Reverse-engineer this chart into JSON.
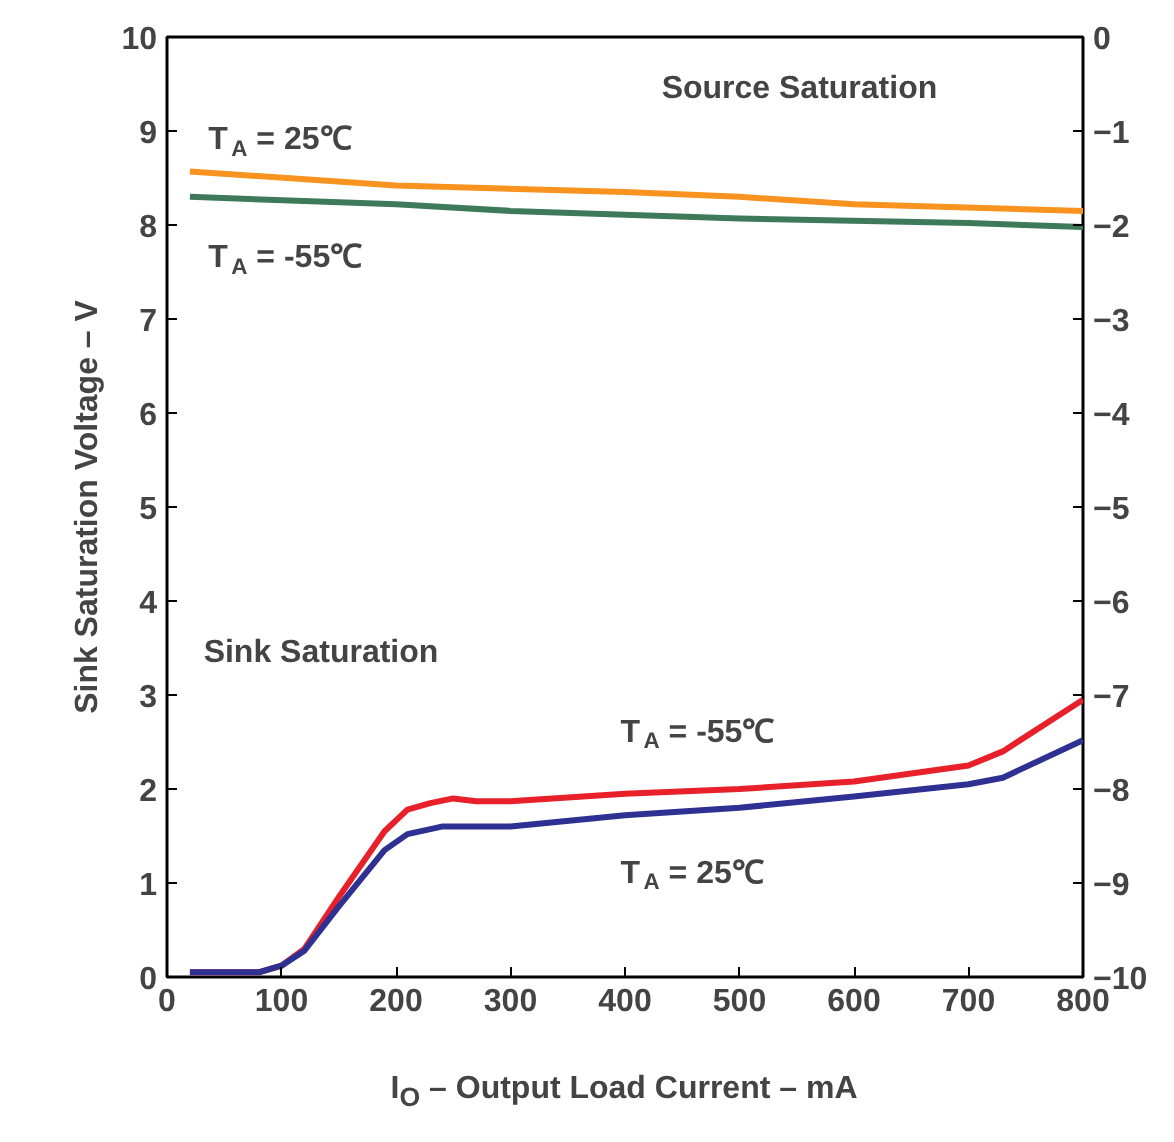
{
  "chart_data": {
    "type": "line",
    "xlabel": "I$_{O}$ – Output Load Current – mA",
    "ylabel": "Sink Saturation Voltage – V",
    "xlim": [
      0,
      800
    ],
    "xticks": [
      0,
      100,
      200,
      300,
      400,
      500,
      600,
      700,
      800
    ],
    "ylim": [
      0,
      10
    ],
    "yticks": [
      0,
      1,
      2,
      3,
      4,
      5,
      6,
      7,
      8,
      9,
      10
    ],
    "y2lim": [
      -10,
      0
    ],
    "y2ticks": [
      -10,
      -9,
      -8,
      -7,
      -6,
      -5,
      -4,
      -3,
      -2,
      -1,
      0
    ],
    "grid": false,
    "marker": "none",
    "line_style": "solid",
    "series": [
      {
        "color": "#f7931e",
        "axis": "y2",
        "x": [
          20,
          200,
          400,
          500,
          600,
          800
        ],
        "values": [
          -1.43,
          -1.58,
          -1.65,
          -1.7,
          -1.78,
          -1.85
        ]
      },
      {
        "color": "#3e7a5a",
        "axis": "y2",
        "x": [
          20,
          200,
          300,
          500,
          700,
          800
        ],
        "values": [
          -1.7,
          -1.78,
          -1.85,
          -1.93,
          -1.98,
          -2.02
        ]
      },
      {
        "color": "#e8202a",
        "x": [
          20,
          80,
          100,
          120,
          150,
          190,
          210,
          230,
          250,
          270,
          300,
          400,
          500,
          600,
          700,
          730,
          800
        ],
        "values": [
          0.05,
          0.05,
          0.12,
          0.3,
          0.85,
          1.55,
          1.78,
          1.85,
          1.9,
          1.87,
          1.87,
          1.95,
          2.0,
          2.08,
          2.25,
          2.4,
          2.95
        ]
      },
      {
        "color": "#2e3192",
        "x": [
          20,
          80,
          100,
          120,
          150,
          190,
          210,
          240,
          300,
          400,
          500,
          600,
          700,
          730,
          800
        ],
        "values": [
          0.05,
          0.05,
          0.12,
          0.28,
          0.75,
          1.35,
          1.52,
          1.6,
          1.6,
          1.72,
          1.8,
          1.92,
          2.05,
          2.12,
          2.52
        ]
      }
    ],
    "annotations": [
      "Source Saturation",
      "T$_{A}$ = 25℃",
      "T$_{A}$ = -55℃",
      "Sink Saturation",
      "T$_{A}$ = -55℃",
      "T$_{A}$ = 25℃"
    ]
  }
}
